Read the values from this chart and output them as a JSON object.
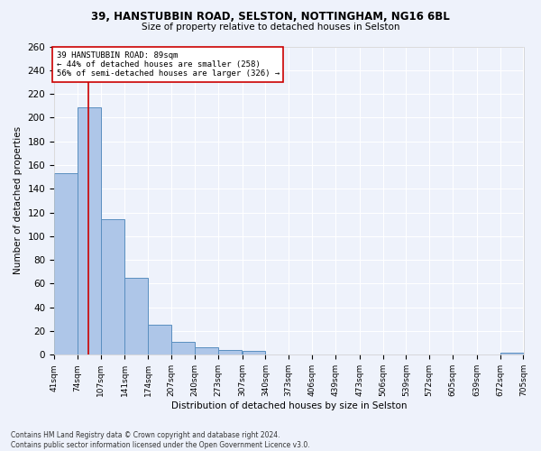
{
  "title1": "39, HANSTUBBIN ROAD, SELSTON, NOTTINGHAM, NG16 6BL",
  "title2": "Size of property relative to detached houses in Selston",
  "xlabel": "Distribution of detached houses by size in Selston",
  "ylabel": "Number of detached properties",
  "footnote": "Contains HM Land Registry data © Crown copyright and database right 2024.\nContains public sector information licensed under the Open Government Licence v3.0.",
  "bin_edges": [
    41,
    74,
    107,
    141,
    174,
    207,
    240,
    273,
    307,
    340,
    373,
    406,
    439,
    473,
    506,
    539,
    572,
    605,
    639,
    672,
    705
  ],
  "bar_heights": [
    153,
    209,
    114,
    65,
    25,
    11,
    6,
    4,
    3,
    0,
    0,
    0,
    0,
    0,
    0,
    0,
    0,
    0,
    0,
    2
  ],
  "bar_color": "#aec6e8",
  "bar_edge_color": "#5a8fc0",
  "subject_size": 89,
  "subject_label": "39 HANSTUBBIN ROAD: 89sqm",
  "annotation_line1": "← 44% of detached houses are smaller (258)",
  "annotation_line2": "56% of semi-detached houses are larger (326) →",
  "vline_color": "#cc0000",
  "annotation_box_color": "#ffffff",
  "annotation_box_edge_color": "#cc0000",
  "ylim": [
    0,
    260
  ],
  "background_color": "#eef2fb",
  "grid_color": "#ffffff",
  "title1_fontsize": 8.5,
  "title2_fontsize": 7.5,
  "ylabel_fontsize": 7.5,
  "xlabel_fontsize": 7.5,
  "ytick_fontsize": 7.5,
  "xtick_fontsize": 6.5,
  "annot_fontsize": 6.5,
  "footnote_fontsize": 5.5
}
